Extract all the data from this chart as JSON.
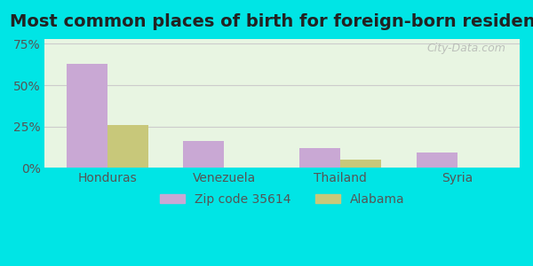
{
  "title": "Most common places of birth for foreign-born residents",
  "categories": [
    "Honduras",
    "Venezuela",
    "Thailand",
    "Syria"
  ],
  "zip_values": [
    63,
    16,
    12,
    9
  ],
  "alabama_values": [
    26,
    0,
    5,
    0
  ],
  "zip_color": "#c9a8d4",
  "alabama_color": "#c8c87a",
  "background_outer": "#00e5e5",
  "background_inner_top": "#e8f5e9",
  "background_inner_bottom": "#f5fce8",
  "yticks": [
    0,
    25,
    50,
    75
  ],
  "ytick_labels": [
    "0%",
    "25%",
    "50%",
    "75%"
  ],
  "ylim": [
    0,
    78
  ],
  "legend_zip_label": "Zip code 35614",
  "legend_alabama_label": "Alabama",
  "title_fontsize": 14,
  "tick_fontsize": 10,
  "legend_fontsize": 10,
  "bar_width": 0.35,
  "grid_color": "#cccccc"
}
